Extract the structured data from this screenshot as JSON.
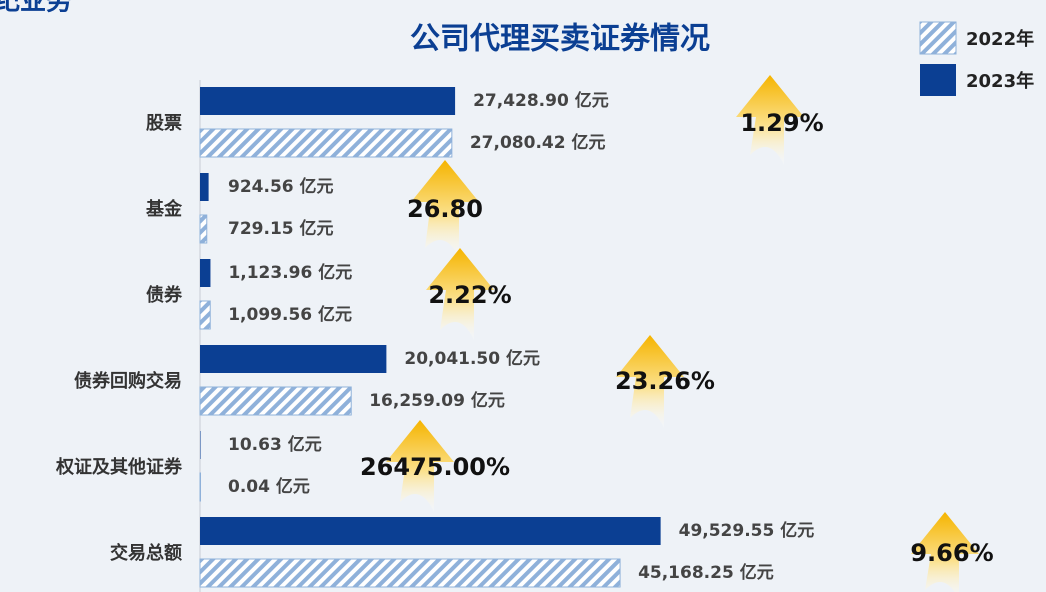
{
  "header": "纪业务",
  "chart_data": {
    "type": "barh",
    "title": "公司代理买卖证券情况",
    "categories": [
      "股票",
      "基金",
      "债券",
      "债券回购交易",
      "权证及其他证券",
      "交易总额"
    ],
    "series": [
      {
        "name": "2023年",
        "color": "#0b3f93",
        "values": [
          27428.9,
          924.56,
          1123.96,
          20041.5,
          10.63,
          49529.55
        ],
        "value_labels": [
          "27,428.90 亿元",
          "924.56 亿元",
          "1,123.96 亿元",
          "20,041.50 亿元",
          "10.63 亿元",
          "49,529.55 亿元"
        ]
      },
      {
        "name": "2022年",
        "color": "#8fb1da",
        "hatch": true,
        "values": [
          27080.42,
          729.15,
          1099.56,
          16259.09,
          0.04,
          45168.25
        ],
        "value_labels": [
          "27,080.42 亿元",
          "729.15 亿元",
          "1,099.56 亿元",
          "16,259.09 亿元",
          "0.04 亿元",
          "45,168.25 亿元"
        ]
      }
    ],
    "annotations": [
      "1.29%",
      "26.80",
      "2.22%",
      "23.26%",
      "26475.00%",
      "9.66%"
    ],
    "xlim": [
      0,
      50000
    ],
    "legend": "top-right"
  }
}
